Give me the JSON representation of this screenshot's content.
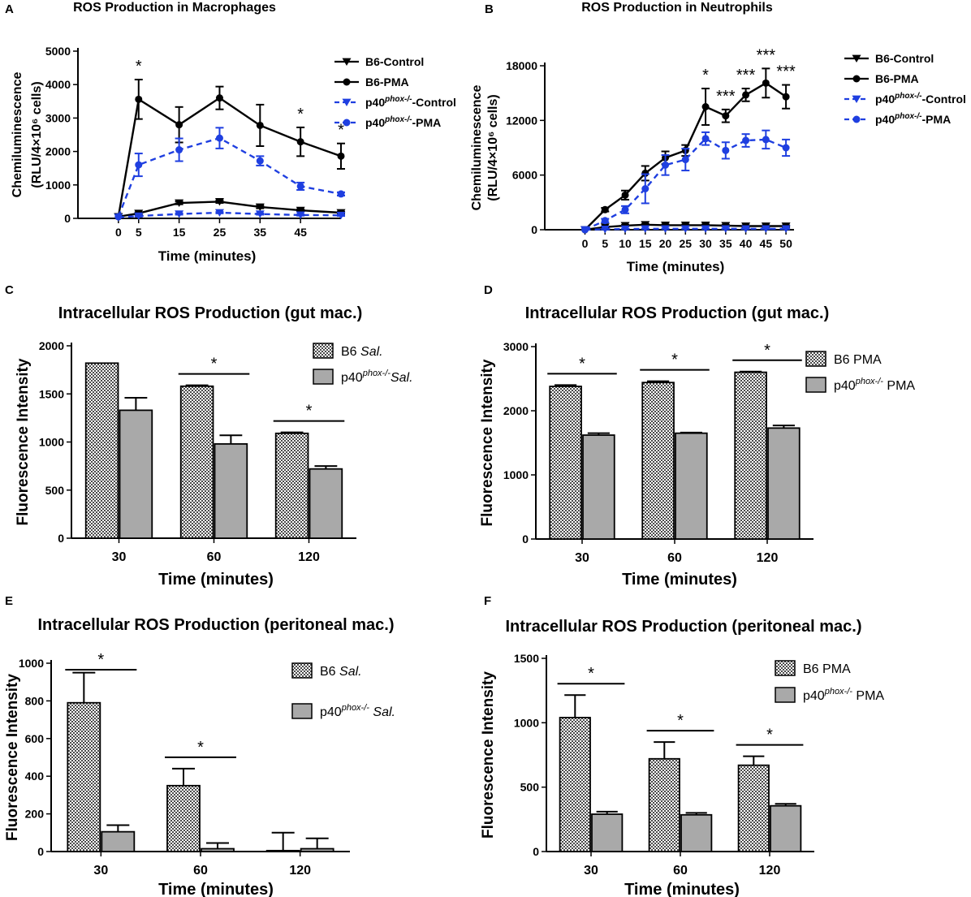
{
  "figure": {
    "colors": {
      "black": "#000000",
      "blue": "#1f3fe0",
      "gray_bar": "#a9a9a9",
      "gray_bar_dark": "#8e8e8e"
    }
  },
  "chart_data": [
    {
      "id": "A",
      "panel_label": "A",
      "type": "line",
      "title": "ROS Production in Macrophages",
      "xlabel": "Time (minutes)",
      "ylabel_line1": "Chemiluminescence",
      "ylabel_line2": "(RLU/4×10⁶ cells)",
      "x": [
        0,
        5,
        15,
        25,
        35,
        45,
        55
      ],
      "x_ticks": [
        0,
        5,
        15,
        25,
        35,
        45
      ],
      "xlim": [
        -10,
        55
      ],
      "ylim": [
        0,
        5000
      ],
      "y_ticks": [
        0,
        1000,
        2000,
        3000,
        4000,
        5000
      ],
      "series": [
        {
          "name": "B6-Control",
          "marker": "triangle-down",
          "color": "#000000",
          "dashed": false,
          "values": [
            50,
            150,
            460,
            500,
            340,
            240,
            170
          ],
          "errors": [
            0,
            30,
            40,
            40,
            40,
            30,
            30
          ]
        },
        {
          "name": "B6-PMA",
          "marker": "circle",
          "color": "#000000",
          "dashed": false,
          "values": [
            50,
            3560,
            2800,
            3600,
            2780,
            2290,
            1860
          ],
          "errors": [
            0,
            590,
            530,
            340,
            620,
            430,
            380
          ]
        },
        {
          "name": "p40phox-/--Control",
          "marker": "triangle-down",
          "color": "#1f3fe0",
          "dashed": true,
          "values": [
            30,
            70,
            130,
            170,
            130,
            100,
            90
          ],
          "errors": [
            0,
            20,
            20,
            20,
            20,
            20,
            20
          ]
        },
        {
          "name": "p40phox-/--PMA",
          "marker": "circle",
          "color": "#1f3fe0",
          "dashed": true,
          "values": [
            50,
            1600,
            2050,
            2400,
            1720,
            960,
            730
          ],
          "errors": [
            0,
            340,
            340,
            310,
            140,
            110,
            50
          ]
        }
      ],
      "significance": [
        {
          "x": 5,
          "label": "*"
        },
        {
          "x": 45,
          "label": "*"
        },
        {
          "x": 55,
          "label": "*"
        }
      ],
      "legend": [
        {
          "pre": "B6-Control",
          "sup": "",
          "post": ""
        },
        {
          "pre": "B6-PMA",
          "sup": "",
          "post": ""
        },
        {
          "pre": "p40",
          "sup": "phox-/-",
          "post": "-Control"
        },
        {
          "pre": "p40",
          "sup": "phox-/-",
          "post": "-PMA"
        }
      ]
    },
    {
      "id": "B",
      "panel_label": "B",
      "type": "line",
      "title": "ROS Production in Neutrophils",
      "xlabel": "Time (minutes)",
      "ylabel_line1": "Chemiluminescence",
      "ylabel_line2": "(RLU/4×10⁶ cells)",
      "x": [
        0,
        5,
        10,
        15,
        20,
        25,
        30,
        35,
        40,
        45,
        50
      ],
      "x_ticks": [
        0,
        5,
        10,
        15,
        20,
        25,
        30,
        35,
        40,
        45,
        50
      ],
      "xlim": [
        -10,
        52
      ],
      "ylim": [
        0,
        18000
      ],
      "y_ticks": [
        0,
        6000,
        12000,
        18000
      ],
      "series": [
        {
          "name": "B6-Control",
          "marker": "triangle-down",
          "color": "#000000",
          "dashed": false,
          "values": [
            0,
            300,
            450,
            550,
            500,
            500,
            500,
            450,
            400,
            400,
            400
          ],
          "errors": [
            0,
            80,
            80,
            80,
            80,
            80,
            80,
            80,
            80,
            80,
            80
          ]
        },
        {
          "name": "B6-PMA",
          "marker": "circle",
          "color": "#000000",
          "dashed": false,
          "values": [
            0,
            2200,
            3800,
            6200,
            7900,
            8700,
            13500,
            12500,
            14800,
            16100,
            14600
          ],
          "errors": [
            0,
            200,
            500,
            800,
            700,
            600,
            2000,
            700,
            700,
            1600,
            1300
          ]
        },
        {
          "name": "p40phox-/--Control",
          "marker": "triangle-down",
          "color": "#1f3fe0",
          "dashed": true,
          "values": [
            0,
            50,
            80,
            100,
            100,
            100,
            100,
            100,
            100,
            100,
            100
          ],
          "errors": [
            0,
            30,
            30,
            30,
            30,
            30,
            30,
            30,
            30,
            30,
            30
          ]
        },
        {
          "name": "p40phox-/--PMA",
          "marker": "circle",
          "color": "#1f3fe0",
          "dashed": true,
          "values": [
            0,
            1000,
            2200,
            4500,
            7100,
            7700,
            10000,
            8700,
            9800,
            9900,
            9000
          ],
          "errors": [
            0,
            200,
            400,
            1600,
            1100,
            1200,
            700,
            900,
            700,
            1000,
            900
          ]
        }
      ],
      "significance": [
        {
          "x": 30,
          "label": "*"
        },
        {
          "x": 35,
          "label": "***"
        },
        {
          "x": 40,
          "label": "***"
        },
        {
          "x": 45,
          "label": "***"
        },
        {
          "x": 50,
          "label": "***"
        }
      ],
      "legend": [
        {
          "pre": "B6-Control",
          "sup": "",
          "post": ""
        },
        {
          "pre": "B6-PMA",
          "sup": "",
          "post": ""
        },
        {
          "pre": "p40",
          "sup": "phox-/-",
          "post": "-Control"
        },
        {
          "pre": "p40",
          "sup": "phox-/-",
          "post": "-PMA"
        }
      ]
    },
    {
      "id": "C",
      "panel_label": "C",
      "type": "bar",
      "title": "Intracellular ROS Production (gut mac.)",
      "xlabel": "Time (minutes)",
      "ylabel": "Fluorescence Intensity",
      "categories": [
        "30",
        "60",
        "120"
      ],
      "ylim": [
        0,
        2000
      ],
      "y_ticks": [
        0,
        500,
        1000,
        1500,
        2000
      ],
      "series": [
        {
          "name": "B6 Sal.",
          "pattern": "checker",
          "values": [
            1820,
            1580,
            1090
          ],
          "errors": [
            0,
            10,
            10
          ]
        },
        {
          "name": "p40phox-/- Sal.",
          "pattern": "gray",
          "values": [
            1330,
            980,
            720
          ],
          "errors": [
            130,
            90,
            30
          ]
        }
      ],
      "significance": [
        {
          "category": 1,
          "label": "*"
        },
        {
          "category": 2,
          "label": "*"
        }
      ],
      "legend": [
        {
          "pre": "B6 ",
          "sup": "",
          "post": "",
          "ital": "Sal."
        },
        {
          "pre": "p40",
          "sup": "phox-/-",
          "post": "",
          "ital": "Sal."
        }
      ]
    },
    {
      "id": "D",
      "panel_label": "D",
      "type": "bar",
      "title": "Intracellular ROS Production (gut mac.)",
      "xlabel": "Time (minutes)",
      "ylabel": "Fluorescence Intensity",
      "categories": [
        "30",
        "60",
        "120"
      ],
      "ylim": [
        0,
        3000
      ],
      "y_ticks": [
        0,
        1000,
        2000,
        3000
      ],
      "series": [
        {
          "name": "B6 PMA",
          "pattern": "checker",
          "values": [
            2380,
            2440,
            2600
          ],
          "errors": [
            20,
            20,
            10
          ]
        },
        {
          "name": "p40phox-/- PMA",
          "pattern": "gray",
          "values": [
            1620,
            1650,
            1730
          ],
          "errors": [
            30,
            10,
            40
          ]
        }
      ],
      "significance": [
        {
          "category": 0,
          "label": "*"
        },
        {
          "category": 1,
          "label": "*"
        },
        {
          "category": 2,
          "label": "*"
        }
      ],
      "legend": [
        {
          "pre": "B6 PMA",
          "sup": "",
          "post": "",
          "ital": ""
        },
        {
          "pre": "p40",
          "sup": "phox-/-",
          "post": " PMA",
          "ital": ""
        }
      ]
    },
    {
      "id": "E",
      "panel_label": "E",
      "type": "bar",
      "title": "Intracellular ROS Production (peritoneal mac.)",
      "xlabel": "Time (minutes)",
      "ylabel": "Fluorescence Intensity",
      "categories": [
        "30",
        "60",
        "120"
      ],
      "ylim": [
        0,
        1000
      ],
      "y_ticks": [
        0,
        200,
        400,
        600,
        800,
        1000
      ],
      "series": [
        {
          "name": "B6 Sal.",
          "pattern": "checker",
          "values": [
            790,
            350,
            5
          ],
          "errors": [
            160,
            90,
            95
          ]
        },
        {
          "name": "p40phox-/- Sal.",
          "pattern": "gray",
          "values": [
            105,
            15,
            15
          ],
          "errors": [
            35,
            30,
            55
          ]
        }
      ],
      "significance": [
        {
          "category": 0,
          "label": "*"
        },
        {
          "category": 1,
          "label": "*"
        }
      ],
      "legend": [
        {
          "pre": "B6 ",
          "sup": "",
          "post": "",
          "ital": "Sal."
        },
        {
          "pre": "p40",
          "sup": "phox-/-",
          "post": "  ",
          "ital": "Sal."
        }
      ]
    },
    {
      "id": "F",
      "panel_label": "F",
      "type": "bar",
      "title": "Intracellular ROS Production (peritoneal mac.)",
      "xlabel": "Time (minutes)",
      "ylabel": "Fluorescence Intensity",
      "categories": [
        "30",
        "60",
        "120"
      ],
      "ylim": [
        0,
        1500
      ],
      "y_ticks": [
        0,
        500,
        1000,
        1500
      ],
      "series": [
        {
          "name": "B6 PMA",
          "pattern": "checker",
          "values": [
            1040,
            720,
            670
          ],
          "errors": [
            175,
            130,
            70
          ]
        },
        {
          "name": "p40phox-/- PMA",
          "pattern": "gray",
          "values": [
            290,
            285,
            355
          ],
          "errors": [
            20,
            15,
            15
          ]
        }
      ],
      "significance": [
        {
          "category": 0,
          "label": "*"
        },
        {
          "category": 1,
          "label": "*"
        },
        {
          "category": 2,
          "label": "*"
        }
      ],
      "legend": [
        {
          "pre": "B6 PMA",
          "sup": "",
          "post": "",
          "ital": ""
        },
        {
          "pre": "p40",
          "sup": "phox-/-",
          "post": " PMA",
          "ital": ""
        }
      ]
    }
  ]
}
